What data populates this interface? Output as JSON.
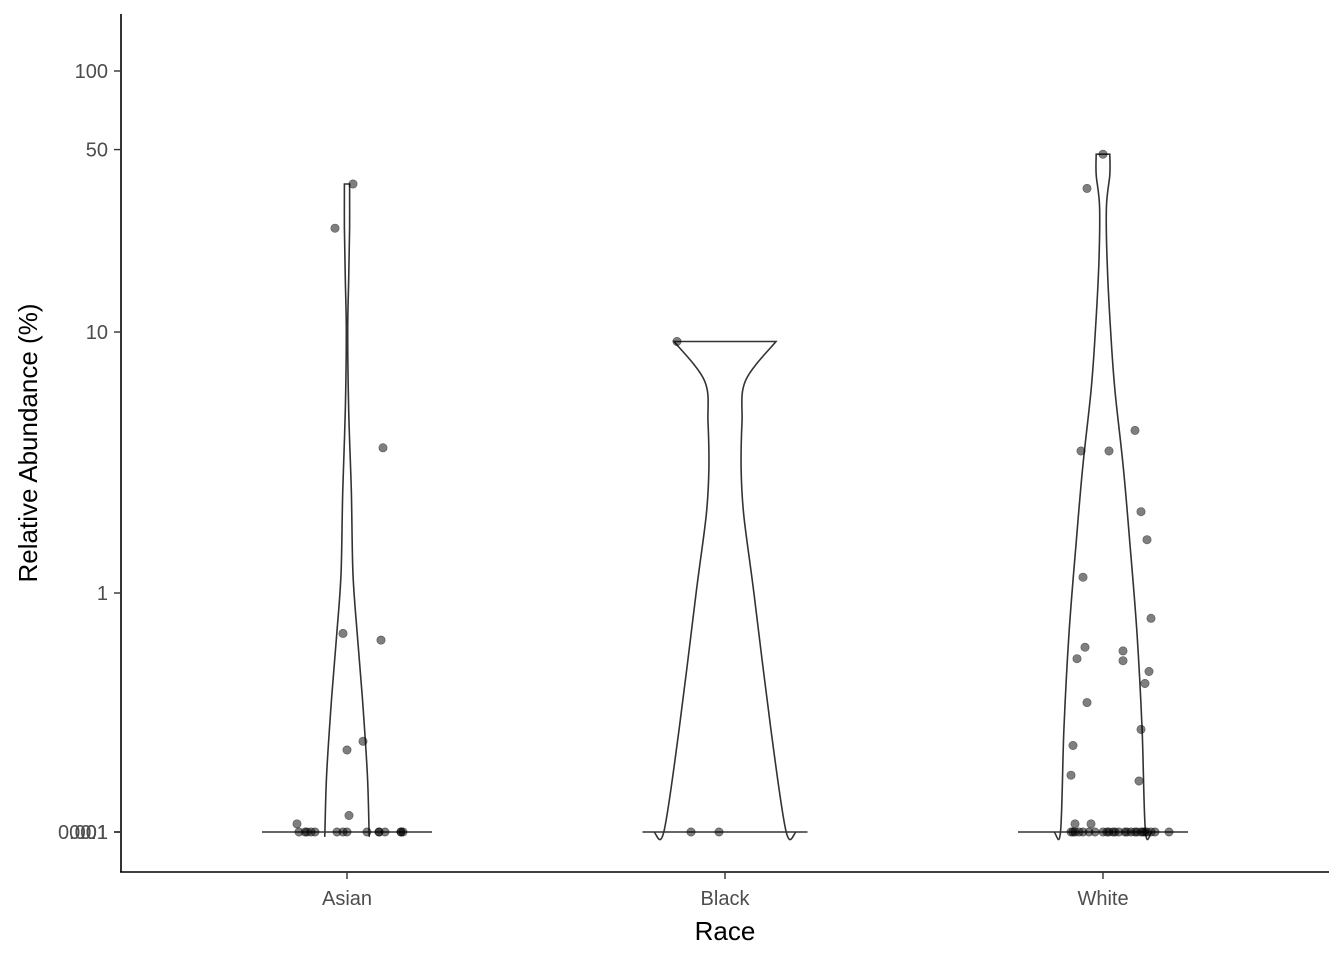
{
  "chart_data": {
    "type": "violin",
    "title": "",
    "xlabel": "Race",
    "ylabel": "Relative Abundance (%)",
    "y_scale": "pseudo-log",
    "y_ticks": [
      0.001,
      0.01,
      0.1,
      1,
      10,
      50,
      100
    ],
    "y_tick_labels": [
      "0.001",
      "0.01",
      "0.1",
      "1",
      "10",
      "50",
      "100"
    ],
    "ylim": [
      0,
      150
    ],
    "grid": false,
    "categories": [
      "Asian",
      "Black",
      "White"
    ],
    "violins": [
      {
        "category": "Asian",
        "max": 36.9,
        "profile": [
          [
            0,
            0.5
          ],
          [
            0.0002,
            0.46
          ],
          [
            0.0005,
            0.37
          ],
          [
            0.001,
            0.28
          ],
          [
            0.002,
            0.22
          ],
          [
            0.005,
            0.17
          ],
          [
            0.01,
            0.14
          ],
          [
            0.02,
            0.13
          ],
          [
            0.05,
            0.13
          ],
          [
            0.1,
            0.13
          ],
          [
            0.2,
            0.12
          ],
          [
            0.4,
            0.09
          ],
          [
            0.7,
            0.06
          ],
          [
            1.2,
            0.035
          ],
          [
            2.5,
            0.025
          ],
          [
            5,
            0.01
          ],
          [
            10,
            0.004
          ],
          [
            16,
            0.01
          ],
          [
            25,
            0.015
          ],
          [
            36.9,
            0.015
          ]
        ],
        "points": [
          0,
          0,
          0,
          0,
          0,
          0,
          0,
          0,
          0,
          0,
          0.0012,
          0.06,
          0.13,
          0.7,
          0.25,
          0.14,
          0.27,
          25,
          36.9,
          0.66,
          0.09,
          0.033,
          0.0032,
          3.6
        ],
        "jitter": [
          -0.2,
          -0.18,
          -0.16,
          -0.05,
          -0.02,
          0.0,
          0.1,
          0.16,
          0.27,
          0.28,
          -0.21,
          -0.24,
          -0.25,
          -0.02,
          0.0,
          0.01,
          0.08,
          -0.06,
          0.03,
          0.17,
          0.16,
          0.19,
          0.27,
          0.18
        ]
      },
      {
        "category": "Black",
        "max": 9.2,
        "profile": [
          [
            0,
            0.45
          ],
          [
            0.0002,
            0.46
          ],
          [
            0.0005,
            0.48
          ],
          [
            0.001,
            0.485
          ],
          [
            0.003,
            0.48
          ],
          [
            0.01,
            0.46
          ],
          [
            0.03,
            0.42
          ],
          [
            0.1,
            0.36
          ],
          [
            0.3,
            0.27
          ],
          [
            1,
            0.17
          ],
          [
            2,
            0.11
          ],
          [
            3,
            0.095
          ],
          [
            4.5,
            0.1
          ],
          [
            6.5,
            0.12
          ],
          [
            9.2,
            0.3
          ]
        ],
        "points": [
          0,
          0.077,
          9.2
        ],
        "jitter": [
          -0.03,
          -0.17,
          -0.24
        ]
      },
      {
        "category": "White",
        "max": 48,
        "profile": [
          [
            0,
            0.5
          ],
          [
            0.0002,
            0.48
          ],
          [
            0.0005,
            0.45
          ],
          [
            0.001,
            0.42
          ],
          [
            0.003,
            0.38
          ],
          [
            0.01,
            0.34
          ],
          [
            0.03,
            0.29
          ],
          [
            0.08,
            0.25
          ],
          [
            0.3,
            0.23
          ],
          [
            0.7,
            0.2
          ],
          [
            1.5,
            0.16
          ],
          [
            3,
            0.12
          ],
          [
            6,
            0.07
          ],
          [
            10,
            0.045
          ],
          [
            18,
            0.025
          ],
          [
            30,
            0.02
          ],
          [
            40,
            0.04
          ],
          [
            48,
            0.04
          ]
        ],
        "points": [
          0,
          0,
          0,
          0,
          0,
          0,
          0,
          0,
          0,
          0,
          0,
          0,
          0,
          0,
          48,
          35.5,
          4.2,
          3.5,
          3.5,
          2.05,
          1.6,
          1.15,
          0.8,
          0.56,
          0.45,
          0.62,
          0.5,
          0.55,
          0.6,
          0.38,
          0.3,
          0.26,
          0.2,
          0.19,
          0.13,
          0.13,
          0.11,
          0.1,
          0.038,
          0.035,
          0.03,
          0.028,
          0.01,
          0.012,
          0.014,
          0.007,
          0.0085
        ],
        "jitter": [
          -0.07,
          -0.04,
          0.02,
          0.11,
          0.14,
          0.16,
          0.17,
          0.19,
          0.2,
          0.21,
          0.22,
          0.24,
          0.26,
          0.33,
          0.0,
          -0.08,
          0.16,
          -0.11,
          0.03,
          0.19,
          0.22,
          -0.1,
          0.24,
          -0.13,
          0.21,
          -0.09,
          0.23,
          0.1,
          0.1,
          -0.08,
          0.19,
          -0.15,
          -0.16,
          0.18,
          -0.14,
          -0.06,
          -0.1,
          0.06,
          -0.16,
          0.03,
          0.12,
          0.05,
          0.0,
          -0.15,
          -0.14,
          0.08,
          -0.12
        ]
      }
    ]
  }
}
